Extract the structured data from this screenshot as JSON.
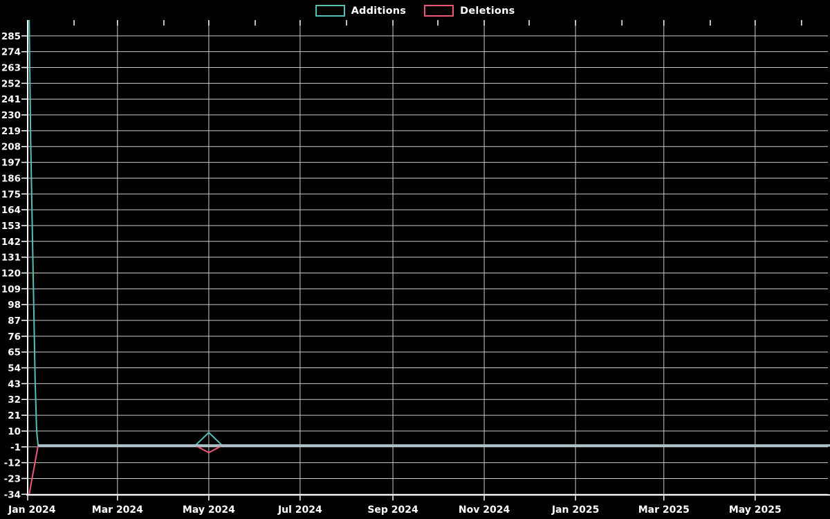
{
  "colors": {
    "background": "#000000",
    "additions": "#53c1b6",
    "deletions": "#ee5877",
    "overlap_zero_line": "#a9bfc6",
    "gridline": "#cccccc",
    "axis": "#ffffff",
    "text": "#ffffff"
  },
  "legend": {
    "position": "top-center",
    "items": [
      {
        "label": "Additions",
        "color": "#53c1b6"
      },
      {
        "label": "Deletions",
        "color": "#ee5877"
      }
    ]
  },
  "chart_data": {
    "type": "line",
    "title": "",
    "xlabel": "",
    "ylabel": "",
    "grid": true,
    "x_axis": {
      "type": "time",
      "start": "2024-01-01",
      "end": "2025-06-20",
      "tick_dates": [
        "2024-01-01",
        "2024-03-01",
        "2024-05-01",
        "2024-07-01",
        "2024-09-01",
        "2024-11-01",
        "2025-01-01",
        "2025-03-01",
        "2025-05-01"
      ],
      "tick_labels": [
        "Jan 2024",
        "Mar 2024",
        "May 2024",
        "Jul 2024",
        "Sep 2024",
        "Nov 2024",
        "Jan 2025",
        "Mar 2025",
        "May 2025"
      ],
      "minor_tick_interval": "month",
      "minor_ticks_position": "top"
    },
    "y_axis": {
      "min": -34,
      "max": 296,
      "tick_min": -34,
      "tick_max": 285,
      "tick_step": 11,
      "tick_labels": [
        "-34",
        "-23",
        "-12",
        "-1",
        "10",
        "21",
        "32",
        "43",
        "54",
        "65",
        "76",
        "87",
        "98",
        "109",
        "120",
        "131",
        "142",
        "153",
        "164",
        "175",
        "186",
        "197",
        "208",
        "219",
        "230",
        "241",
        "252",
        "263",
        "274",
        "285"
      ]
    },
    "series": [
      {
        "name": "Additions",
        "color": "#53c1b6",
        "points": [
          [
            "2024-01-02",
            296
          ],
          [
            "2024-01-03",
            213
          ],
          [
            "2024-01-06",
            45
          ],
          [
            "2024-01-07",
            10
          ],
          [
            "2024-01-08",
            0
          ],
          [
            "2024-04-22",
            0
          ],
          [
            "2024-05-01",
            9
          ],
          [
            "2024-05-10",
            0
          ],
          [
            "2025-06-20",
            0
          ]
        ]
      },
      {
        "name": "Deletions",
        "color": "#ee5877",
        "points": [
          [
            "2024-01-02",
            -34
          ],
          [
            "2024-01-08",
            0
          ],
          [
            "2024-04-22",
            0
          ],
          [
            "2024-05-01",
            -5
          ],
          [
            "2024-05-10",
            0
          ],
          [
            "2025-06-20",
            0
          ]
        ]
      }
    ],
    "overlap_zero_value": 0,
    "overlap_zero_segments": [
      [
        "2024-01-08",
        "2025-06-20"
      ]
    ]
  }
}
